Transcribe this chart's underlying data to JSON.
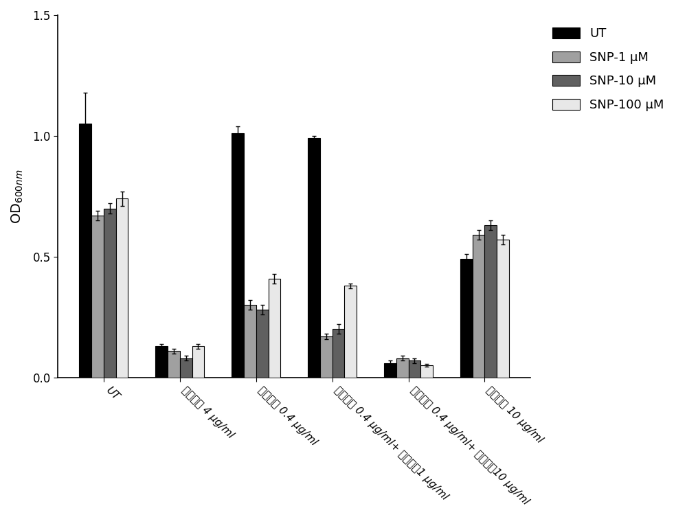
{
  "groups": [
    "UT",
    "妥布霞素 4 μg/ml",
    "妥布霞素 0.4 μg/ml",
    "妥布霞素 0.4 μg/ml+ 头孢哌酨1 μg/ml",
    "妥布霞素 0.4 μg/ml+ 头孢哌酨10 μg/ml",
    "头孢哌酨 10 μg/ml"
  ],
  "series_labels": [
    "UT",
    "SNP-1 μM",
    "SNP-10 μM",
    "SNP-100 μM"
  ],
  "values": [
    [
      1.05,
      0.13,
      1.01,
      0.99,
      0.06,
      0.49
    ],
    [
      0.67,
      0.11,
      0.3,
      0.17,
      0.08,
      0.59
    ],
    [
      0.7,
      0.08,
      0.28,
      0.2,
      0.07,
      0.63
    ],
    [
      0.74,
      0.13,
      0.41,
      0.38,
      0.05,
      0.57
    ]
  ],
  "errors": [
    [
      0.13,
      0.01,
      0.03,
      0.01,
      0.01,
      0.02
    ],
    [
      0.02,
      0.01,
      0.02,
      0.01,
      0.01,
      0.02
    ],
    [
      0.02,
      0.01,
      0.02,
      0.02,
      0.01,
      0.02
    ],
    [
      0.03,
      0.01,
      0.02,
      0.01,
      0.005,
      0.02
    ]
  ],
  "bar_colors": [
    "#000000",
    "#a0a0a0",
    "#606060",
    "#e8e8e8"
  ],
  "bar_edgecolors": [
    "#000000",
    "#000000",
    "#000000",
    "#000000"
  ],
  "ylabel": "OD$_{600nm}$",
  "ylim": [
    0.0,
    1.5
  ],
  "yticks": [
    0.0,
    0.5,
    1.0,
    1.5
  ],
  "bar_width": 0.16,
  "legend_labels": [
    "UT",
    "SNP-1 μM",
    "SNP-10 μM",
    "SNP-100 μM"
  ],
  "background_color": "#ffffff"
}
